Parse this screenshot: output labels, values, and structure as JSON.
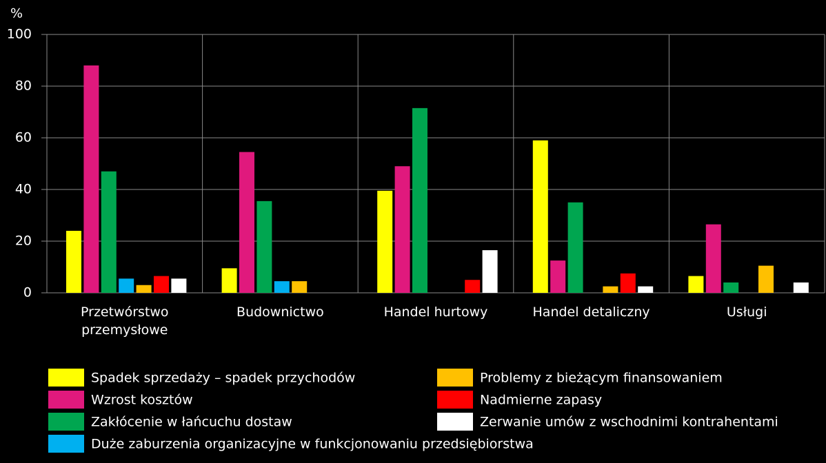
{
  "chart_data": {
    "type": "bar",
    "ylabel": "%",
    "categories": [
      "Przetwórstwo przemysłowe",
      "Budownictwo",
      "Handel hurtowy",
      "Handel detaliczny",
      "Usługi"
    ],
    "series": [
      {
        "name": "Spadek sprzedaży – spadek przychodów",
        "color": "#ffff00",
        "values": [
          24,
          9.5,
          39.5,
          59,
          6.5
        ]
      },
      {
        "name": "Wzrost kosztów",
        "color": "#e0197d",
        "values": [
          88,
          54.5,
          49,
          12.5,
          26.5
        ]
      },
      {
        "name": "Zakłócenie w łańcuchu dostaw",
        "color": "#00a650",
        "values": [
          47,
          35.5,
          71.5,
          35,
          4
        ]
      },
      {
        "name": "Duże zaburzenia organizacyjne w funkcjonowaniu przedsiębiorstwa",
        "color": "#00b0f0",
        "values": [
          5.5,
          4.5,
          null,
          null,
          null
        ]
      },
      {
        "name": "Problemy z bieżącym finansowaniem",
        "color": "#ffc000",
        "values": [
          3,
          4.5,
          null,
          2.5,
          10.5
        ]
      },
      {
        "name": "Nadmierne zapasy",
        "color": "#ff0000",
        "values": [
          6.5,
          null,
          5,
          7.5,
          null
        ]
      },
      {
        "name": "Zerwanie umów z wschodnimi kontrahentami",
        "color": "#ffffff",
        "values": [
          5.5,
          null,
          16.5,
          2.5,
          4
        ]
      }
    ],
    "ylim": [
      0,
      100
    ],
    "yticks": [
      0,
      20,
      40,
      60,
      80,
      100
    ],
    "grid": true
  }
}
